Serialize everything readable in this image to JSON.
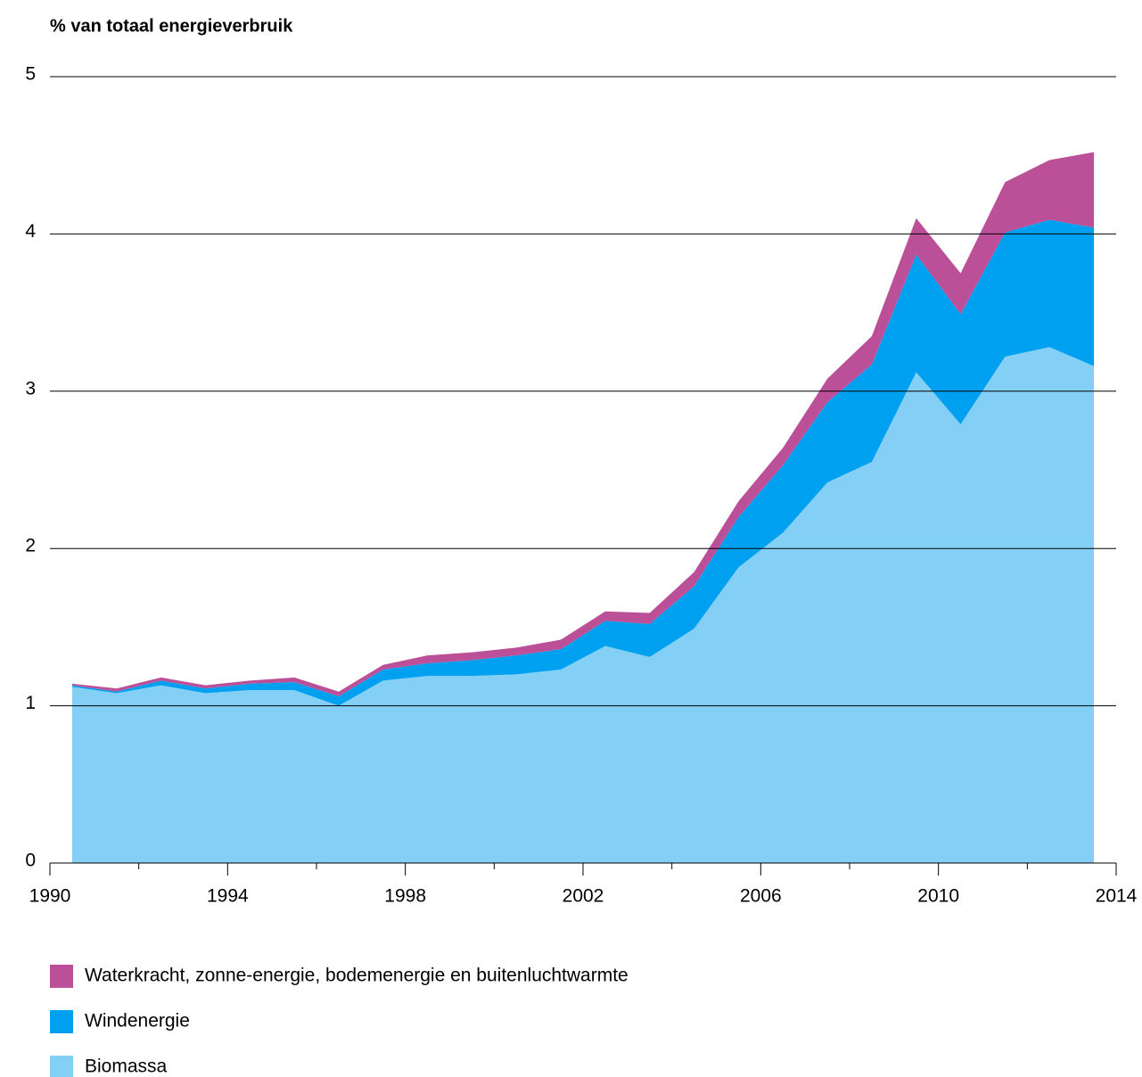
{
  "chart_data": {
    "type": "stacked_area",
    "title": "% van totaal energieverbruik",
    "x": [
      1990.5,
      1991.5,
      1992.5,
      1993.5,
      1994.5,
      1995.5,
      1996.5,
      1997.5,
      1998.5,
      1999.5,
      2000.5,
      2001.5,
      2002.5,
      2003.5,
      2004.5,
      2005.5,
      2006.5,
      2007.5,
      2008.5,
      2009.5,
      2010.5,
      2011.5,
      2012.5,
      2013.5
    ],
    "series": [
      {
        "name": "Waterkracht, zonne-energie, bodemenergie en buitenluchtwarmte",
        "color": "#bb5099",
        "values": [
          0.01,
          0.02,
          0.02,
          0.02,
          0.02,
          0.03,
          0.03,
          0.03,
          0.05,
          0.05,
          0.05,
          0.06,
          0.06,
          0.07,
          0.09,
          0.1,
          0.11,
          0.15,
          0.18,
          0.23,
          0.26,
          0.32,
          0.38,
          0.48
        ]
      },
      {
        "name": "Windenergie",
        "color": "#00a0f0",
        "values": [
          0.01,
          0.01,
          0.03,
          0.03,
          0.04,
          0.05,
          0.06,
          0.07,
          0.08,
          0.1,
          0.12,
          0.13,
          0.16,
          0.21,
          0.27,
          0.32,
          0.43,
          0.51,
          0.62,
          0.75,
          0.7,
          0.79,
          0.81,
          0.88
        ]
      },
      {
        "name": "Biomassa",
        "color": "#84cff5",
        "values": [
          1.12,
          1.08,
          1.13,
          1.08,
          1.1,
          1.1,
          1.0,
          1.16,
          1.19,
          1.19,
          1.2,
          1.23,
          1.38,
          1.31,
          1.49,
          1.88,
          2.1,
          2.42,
          2.55,
          3.12,
          2.79,
          3.22,
          3.28,
          3.16
        ]
      }
    ],
    "xlim": [
      1990,
      2014
    ],
    "xticks": [
      1990,
      1994,
      1998,
      2002,
      2006,
      2010,
      2014
    ],
    "xminor_ticks": [
      1992,
      1996,
      2000,
      2004,
      2008,
      2012
    ],
    "ylim": [
      0,
      5
    ],
    "yticks": [
      0,
      1,
      2,
      3,
      4,
      5
    ],
    "grid": true
  }
}
